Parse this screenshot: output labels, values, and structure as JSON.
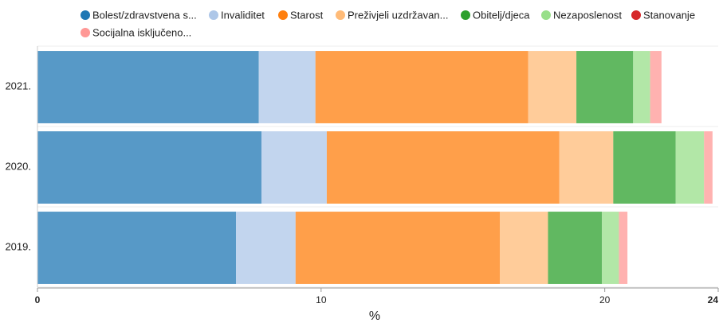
{
  "chart_data": {
    "type": "bar",
    "orientation": "horizontal",
    "stacked": true,
    "xlabel": "%",
    "xlim": [
      0,
      24
    ],
    "x_ticks": [
      "0",
      "10",
      "20",
      "24"
    ],
    "legend_position": "top-left",
    "categories": [
      "2021.",
      "2020.",
      "2019."
    ],
    "series": [
      {
        "name": "Bolest/zdravstvena s...",
        "color": "#1f77b4",
        "values": [
          7.8,
          7.9,
          7.0
        ]
      },
      {
        "name": "Invaliditet",
        "color": "#aec7e8",
        "values": [
          2.0,
          2.3,
          2.1
        ]
      },
      {
        "name": "Starost",
        "color": "#ff7f0e",
        "values": [
          7.5,
          8.2,
          7.2
        ]
      },
      {
        "name": "Preživjeli uzdržavan...",
        "color": "#ffbb78",
        "values": [
          1.7,
          1.9,
          1.7
        ]
      },
      {
        "name": "Obitelj/djeca",
        "color": "#2ca02c",
        "values": [
          2.0,
          2.2,
          1.9
        ]
      },
      {
        "name": "Nezaposlenost",
        "color": "#98df8a",
        "values": [
          0.6,
          1.0,
          0.6
        ]
      },
      {
        "name": "Stanovanje",
        "color": "#d62728",
        "values": [
          0.0,
          0.0,
          0.0
        ]
      },
      {
        "name": "Socijalna isključeno...",
        "color": "#ff9896",
        "values": [
          0.4,
          0.3,
          0.3
        ]
      }
    ]
  }
}
